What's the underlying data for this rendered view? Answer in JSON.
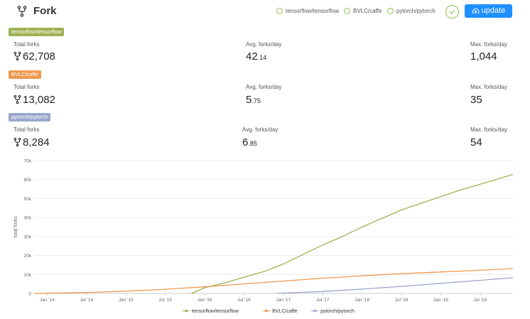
{
  "header": {
    "title": "Fork",
    "repos": [
      "tensorflow/tensorflow",
      "BVLC/caffe",
      "pytorch/pytorch"
    ],
    "update_label": "update"
  },
  "stats": [
    {
      "tag": "tensorflow/tensorflow",
      "color": "#9eb254",
      "total_label": "Total forks",
      "total": "62,708",
      "avg_label": "Avg. forks/day",
      "avg_int": "42",
      "avg_frac": ".14",
      "max_label": "Max. forks/day",
      "max": "1,044"
    },
    {
      "tag": "BVLC/caffe",
      "color": "#ee9a52",
      "total_label": "Total forks",
      "total": "13,082",
      "avg_label": "Avg. forks/day",
      "avg_int": "5",
      "avg_frac": ".75",
      "max_label": "Max. forks/day",
      "max": "35"
    },
    {
      "tag": "pytorch/pytorch",
      "color": "#9aa6cc",
      "total_label": "Total forks",
      "total": "8,284",
      "avg_label": "Avg. forks/day",
      "avg_int": "6",
      "avg_frac": ".85",
      "max_label": "Max. forks/day",
      "max": "54"
    }
  ],
  "chart_data": {
    "type": "line",
    "title": "",
    "xlabel": "",
    "ylabel": "total forks",
    "x_ticks": [
      "Jan '14",
      "Jul '14",
      "Jan '15",
      "Jul '15",
      "Jan '16",
      "Jul '16",
      "Jan '17",
      "Jul '17",
      "Jan '18",
      "Jul '18",
      "Jan '19",
      "Jul '19"
    ],
    "y_ticks": [
      "0",
      "10k",
      "20k",
      "30k",
      "40k",
      "50k",
      "60k",
      "70k"
    ],
    "ylim": [
      0,
      70000
    ],
    "xlim": [
      "2013-11",
      "2019-12"
    ],
    "grid": true,
    "legend": "bottom",
    "series": [
      {
        "name": "tensorflow/tensorflow",
        "color": "#9eb254",
        "points": [
          [
            "2015-11",
            0
          ],
          [
            "2016-01",
            3000
          ],
          [
            "2016-04",
            5500
          ],
          [
            "2016-07",
            8500
          ],
          [
            "2016-10",
            11500
          ],
          [
            "2017-01",
            15500
          ],
          [
            "2017-04",
            20500
          ],
          [
            "2017-07",
            25500
          ],
          [
            "2017-10",
            30000
          ],
          [
            "2018-01",
            35000
          ],
          [
            "2018-04",
            39500
          ],
          [
            "2018-07",
            44000
          ],
          [
            "2018-10",
            47500
          ],
          [
            "2019-01",
            51000
          ],
          [
            "2019-04",
            54500
          ],
          [
            "2019-07",
            57500
          ],
          [
            "2019-12",
            62708
          ]
        ]
      },
      {
        "name": "BVLC/caffe",
        "color": "#ee9a52",
        "points": [
          [
            "2013-11",
            0
          ],
          [
            "2014-01",
            100
          ],
          [
            "2014-07",
            500
          ],
          [
            "2015-01",
            1200
          ],
          [
            "2015-07",
            2200
          ],
          [
            "2016-01",
            3500
          ],
          [
            "2016-07",
            5000
          ],
          [
            "2017-01",
            6500
          ],
          [
            "2017-07",
            8000
          ],
          [
            "2018-01",
            9300
          ],
          [
            "2018-07",
            10400
          ],
          [
            "2019-01",
            11300
          ],
          [
            "2019-07",
            12200
          ],
          [
            "2019-12",
            13082
          ]
        ]
      },
      {
        "name": "pytorch/pytorch",
        "color": "#9aa6cc",
        "points": [
          [
            "2016-12",
            0
          ],
          [
            "2017-01",
            200
          ],
          [
            "2017-07",
            1000
          ],
          [
            "2018-01",
            2300
          ],
          [
            "2018-07",
            3700
          ],
          [
            "2019-01",
            5300
          ],
          [
            "2019-07",
            6900
          ],
          [
            "2019-12",
            8284
          ]
        ]
      }
    ]
  }
}
